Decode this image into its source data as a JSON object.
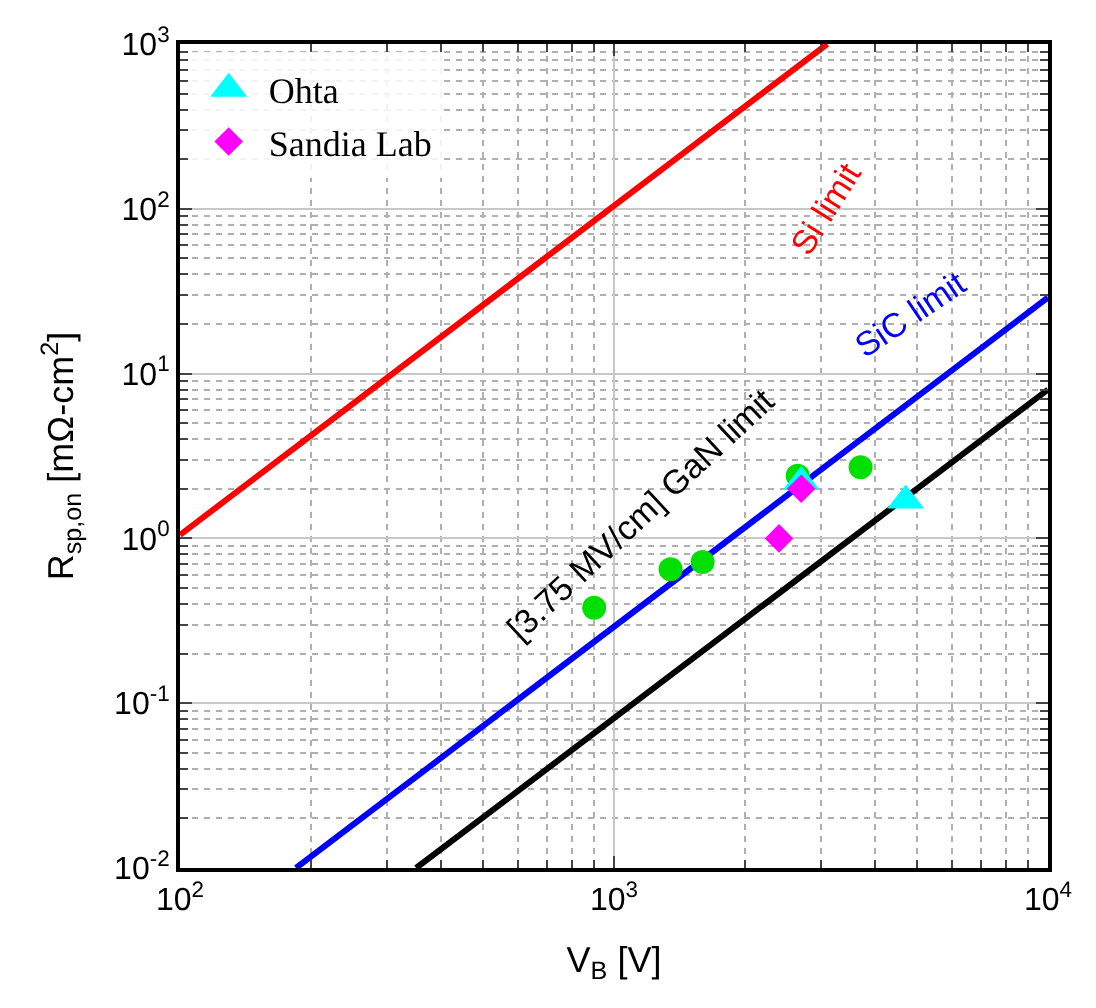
{
  "chart_data": {
    "type": "scatter",
    "xlabel": "V$_{B}$ [V]",
    "ylabel": "R$_{sp,on}$ [mΩ-cm$^{2}$]",
    "log": "xy",
    "grid": true,
    "legend": "top left",
    "xlim": [
      100,
      10000
    ],
    "ylim": [
      0.01,
      1000
    ],
    "xticks": [
      {
        "value": 100,
        "label": "10$^{2}$"
      },
      {
        "value": 1000,
        "label": "10$^{3}$"
      },
      {
        "value": 10000,
        "label": "10$^{4}$"
      }
    ],
    "yticks": [
      {
        "value": 0.01,
        "label": "10$^{-2}$"
      },
      {
        "value": 0.1,
        "label": "10$^{-1}$"
      },
      {
        "value": 1,
        "label": "10$^{0}$"
      },
      {
        "value": 10,
        "label": "10$^{1}$"
      },
      {
        "value": 100,
        "label": "10$^{2}$"
      },
      {
        "value": 1000,
        "label": "10$^{3}$"
      }
    ],
    "series": [
      {
        "type": "line",
        "color": "#ff0000",
        "marker": "none",
        "x": [
          100,
          3100
        ],
        "values": [
          1.05,
          1000
        ]
      },
      {
        "type": "line",
        "color": "#0000ff",
        "marker": "none",
        "x": [
          185,
          10000
        ],
        "values": [
          0.01,
          29
        ]
      },
      {
        "type": "line",
        "color": "#000000",
        "marker": "none",
        "x": [
          350,
          10000
        ],
        "values": [
          0.01,
          8
        ]
      },
      {
        "color": "#00e000",
        "marker": "circle",
        "x": [
          900,
          1350,
          1600,
          2650,
          3700
        ],
        "values": [
          0.38,
          0.65,
          0.72,
          2.4,
          2.7
        ]
      },
      {
        "name": "Ohta",
        "color": "#00ffff",
        "marker": "triangle",
        "x": [
          2700,
          4700
        ],
        "values": [
          2.2,
          1.7
        ]
      },
      {
        "name": "Sandia Lab",
        "color": "#ff00ff",
        "marker": "diamond",
        "x": [
          2400,
          2700
        ],
        "values": [
          1.0,
          2.0
        ]
      }
    ],
    "annotations": [
      "Si limit",
      "SiC limit",
      "[3.75 MV/cm] GaN limit"
    ]
  }
}
